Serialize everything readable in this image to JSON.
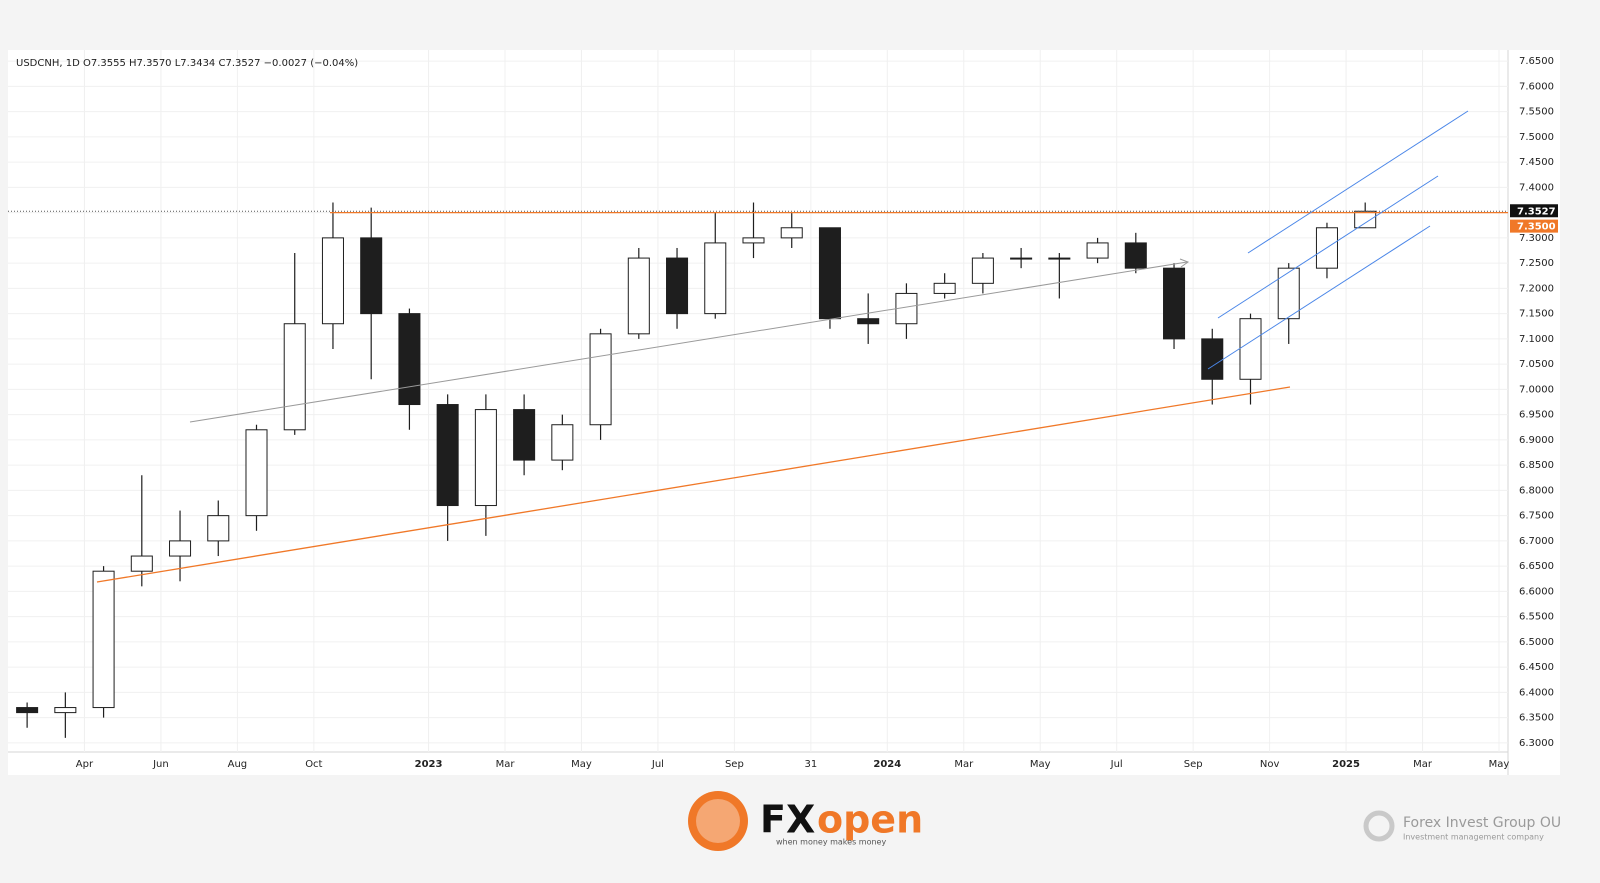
{
  "chart_data": {
    "type": "candlestick",
    "title": "USDCNH, 1D",
    "header_values": [
      "O7.3555",
      "H7.3570",
      "L7.3434",
      "C7.3527",
      "−0.0027 (−0.04%)"
    ],
    "x": [
      "2022-02",
      "2022-03",
      "2022-04",
      "2022-05",
      "2022-06",
      "2022-07",
      "2022-08",
      "2022-09",
      "2022-10",
      "2022-11",
      "2022-12",
      "2023-01",
      "2023-02",
      "2023-03",
      "2023-04",
      "2023-05",
      "2023-06",
      "2023-07",
      "2023-08",
      "2023-09",
      "2023-10",
      "2023-11",
      "2023-12",
      "2024-01",
      "2024-02",
      "2024-03",
      "2024-04",
      "2024-05",
      "2024-06",
      "2024-07",
      "2024-08",
      "2024-09",
      "2024-10",
      "2024-11",
      "2024-12",
      "2025-01"
    ],
    "open": [
      6.37,
      6.36,
      6.37,
      6.64,
      6.67,
      6.7,
      6.75,
      6.92,
      7.13,
      7.3,
      7.15,
      6.97,
      6.77,
      6.96,
      6.86,
      6.93,
      7.11,
      7.26,
      7.15,
      7.29,
      7.3,
      7.32,
      7.14,
      7.13,
      7.19,
      7.21,
      7.26,
      7.26,
      7.26,
      7.29,
      7.24,
      7.1,
      7.02,
      7.14,
      7.24,
      7.32
    ],
    "high": [
      6.38,
      6.4,
      6.65,
      6.83,
      6.76,
      6.78,
      6.93,
      7.27,
      7.37,
      7.36,
      7.16,
      6.99,
      6.99,
      6.99,
      6.95,
      7.12,
      7.28,
      7.28,
      7.35,
      7.37,
      7.35,
      7.32,
      7.19,
      7.21,
      7.23,
      7.27,
      7.28,
      7.27,
      7.3,
      7.31,
      7.25,
      7.12,
      7.15,
      7.25,
      7.33,
      7.37
    ],
    "low": [
      6.33,
      6.31,
      6.35,
      6.61,
      6.62,
      6.67,
      6.72,
      6.91,
      7.08,
      7.02,
      6.92,
      6.7,
      6.71,
      6.83,
      6.84,
      6.9,
      7.1,
      7.12,
      7.14,
      7.26,
      7.28,
      7.12,
      7.09,
      7.1,
      7.18,
      7.19,
      7.24,
      7.18,
      7.25,
      7.23,
      7.08,
      6.97,
      6.97,
      7.09,
      7.22,
      7.32
    ],
    "close": [
      6.36,
      6.37,
      6.64,
      6.67,
      6.7,
      6.75,
      6.92,
      7.13,
      7.3,
      7.15,
      6.97,
      6.77,
      6.96,
      6.86,
      6.93,
      7.11,
      7.26,
      7.15,
      7.29,
      7.3,
      7.32,
      7.14,
      7.13,
      7.19,
      7.21,
      7.26,
      7.26,
      7.26,
      7.29,
      7.24,
      7.1,
      7.02,
      7.14,
      7.24,
      7.32,
      7.3527
    ],
    "color": "#1e1e1e",
    "xlim": [
      "2022-02",
      "2025-05"
    ],
    "xticks": [
      {
        "value": "2022-04",
        "label": "Apr"
      },
      {
        "value": "2022-06",
        "label": "Jun"
      },
      {
        "value": "2022-08",
        "label": "Aug"
      },
      {
        "value": "2022-10",
        "label": "Oct"
      },
      {
        "value": "2023-01",
        "label": "2023"
      },
      {
        "value": "2023-03",
        "label": "Mar"
      },
      {
        "value": "2023-05",
        "label": "May"
      },
      {
        "value": "2023-07",
        "label": "Jul"
      },
      {
        "value": "2023-09",
        "label": "Sep"
      },
      {
        "value": "2023-11",
        "label": "31"
      },
      {
        "value": "2024-01",
        "label": "2024"
      },
      {
        "value": "2024-03",
        "label": "Mar"
      },
      {
        "value": "2024-05",
        "label": "May"
      },
      {
        "value": "2024-07",
        "label": "Jul"
      },
      {
        "value": "2024-09",
        "label": "Sep"
      },
      {
        "value": "2024-11",
        "label": "Nov"
      },
      {
        "value": "2025-01",
        "label": "2025"
      },
      {
        "value": "2025-03",
        "label": "Mar"
      },
      {
        "value": "2025-05",
        "label": "May"
      }
    ],
    "ylim": [
      6.282,
      7.672
    ],
    "yticks": [
      {
        "value": 6.3,
        "label": "6.3000"
      },
      {
        "value": 6.35,
        "label": "6.3500"
      },
      {
        "value": 6.4,
        "label": "6.4000"
      },
      {
        "value": 6.45,
        "label": "6.4500"
      },
      {
        "value": 6.5,
        "label": "6.5000"
      },
      {
        "value": 6.55,
        "label": "6.5500"
      },
      {
        "value": 6.6,
        "label": "6.6000"
      },
      {
        "value": 6.65,
        "label": "6.6500"
      },
      {
        "value": 6.7,
        "label": "6.7000"
      },
      {
        "value": 6.75,
        "label": "6.7500"
      },
      {
        "value": 6.8,
        "label": "6.8000"
      },
      {
        "value": 6.85,
        "label": "6.8500"
      },
      {
        "value": 6.9,
        "label": "6.9000"
      },
      {
        "value": 6.95,
        "label": "6.9500"
      },
      {
        "value": 7.0,
        "label": "7.0000"
      },
      {
        "value": 7.05,
        "label": "7.0500"
      },
      {
        "value": 7.1,
        "label": "7.1000"
      },
      {
        "value": 7.15,
        "label": "7.1500"
      },
      {
        "value": 7.2,
        "label": "7.2000"
      },
      {
        "value": 7.25,
        "label": "7.2500"
      },
      {
        "value": 7.3,
        "label": "7.3000"
      },
      {
        "value": 7.35,
        "label": "7.3500"
      },
      {
        "value": 7.4,
        "label": "7.4000"
      },
      {
        "value": 7.45,
        "label": "7.4500"
      },
      {
        "value": 7.5,
        "label": "7.5000"
      },
      {
        "value": 7.55,
        "label": "7.5500"
      },
      {
        "value": 7.6,
        "label": "7.6000"
      },
      {
        "value": 7.65,
        "label": "7.6500"
      }
    ],
    "grid": true,
    "last_price": 7.3527,
    "level": {
      "value": 7.35,
      "label": "7.3500"
    },
    "level_color": "#f07828"
  },
  "footer": {
    "brand_fx": "FX",
    "brand_open": "open",
    "tagline": "when money makes money",
    "company": "Forex Invest Group OU",
    "company_sub": "Investment management company"
  }
}
